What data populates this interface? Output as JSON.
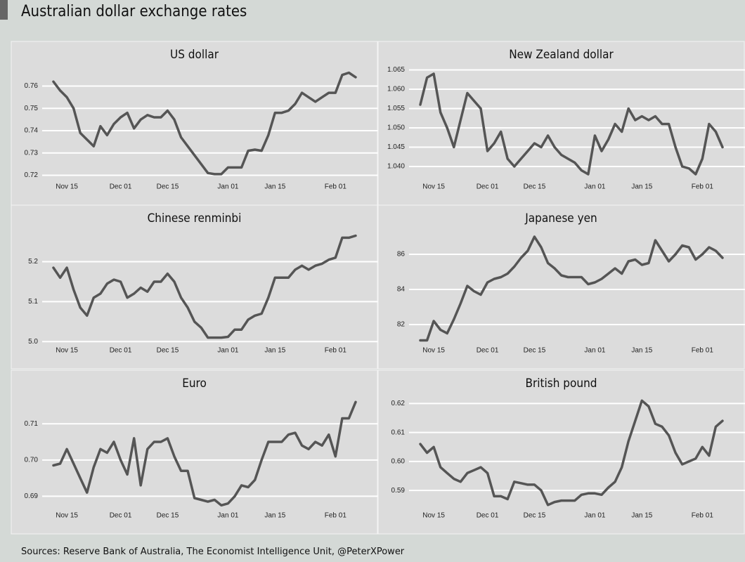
{
  "title": "Australian dollar exchange rates",
  "source": "Sources: Reserve Bank of Australia, The Economist Intelligence Unit, @PeterXPower",
  "chart_data": [
    {
      "type": "line",
      "title": "US dollar",
      "color": "#555555",
      "grid": true,
      "x": [
        "Nov 11",
        "Nov 13",
        "Nov 15",
        "Nov 17",
        "Nov 19",
        "Nov 21",
        "Nov 23",
        "Nov 25",
        "Nov 27",
        "Nov 29",
        "Dec 01",
        "Dec 03",
        "Dec 05",
        "Dec 07",
        "Dec 09",
        "Dec 11",
        "Dec 13",
        "Dec 15",
        "Dec 17",
        "Dec 19",
        "Dec 21",
        "Dec 23",
        "Dec 25",
        "Dec 27",
        "Dec 29",
        "Dec 31",
        "Jan 01",
        "Jan 03",
        "Jan 05",
        "Jan 07",
        "Jan 09",
        "Jan 11",
        "Jan 13",
        "Jan 15",
        "Jan 17",
        "Jan 19",
        "Jan 21",
        "Jan 23",
        "Jan 25",
        "Jan 27",
        "Jan 29",
        "Jan 31",
        "Feb 01",
        "Feb 03",
        "Feb 05",
        "Feb 07"
      ],
      "values": [
        0.762,
        0.758,
        0.755,
        0.75,
        0.739,
        0.736,
        0.733,
        0.742,
        0.738,
        0.743,
        0.746,
        0.748,
        0.741,
        0.745,
        0.747,
        0.746,
        0.746,
        0.749,
        0.745,
        0.737,
        0.733,
        0.729,
        0.725,
        0.721,
        0.7205,
        0.7205,
        0.7235,
        0.7235,
        0.7235,
        0.731,
        0.7315,
        0.731,
        0.738,
        0.748,
        0.748,
        0.749,
        0.752,
        0.757,
        0.755,
        0.753,
        0.755,
        0.757,
        0.757,
        0.765,
        0.766,
        0.764
      ],
      "ylim": [
        0.717,
        0.769
      ],
      "yticks": [
        0.72,
        0.73,
        0.74,
        0.75,
        0.76
      ],
      "xticks": [
        "Nov 15",
        "Dec 01",
        "Dec 15",
        "Jan 01",
        "Jan 15",
        "Feb 01"
      ]
    },
    {
      "type": "line",
      "title": "New Zealand dollar",
      "color": "#555555",
      "grid": true,
      "x": [
        "Nov 11",
        "Nov 13",
        "Nov 15",
        "Nov 17",
        "Nov 19",
        "Nov 21",
        "Nov 23",
        "Nov 25",
        "Nov 27",
        "Nov 29",
        "Dec 01",
        "Dec 03",
        "Dec 05",
        "Dec 07",
        "Dec 09",
        "Dec 11",
        "Dec 13",
        "Dec 15",
        "Dec 17",
        "Dec 19",
        "Dec 21",
        "Dec 23",
        "Dec 25",
        "Dec 27",
        "Dec 29",
        "Dec 31",
        "Jan 01",
        "Jan 03",
        "Jan 05",
        "Jan 07",
        "Jan 09",
        "Jan 11",
        "Jan 13",
        "Jan 15",
        "Jan 17",
        "Jan 19",
        "Jan 21",
        "Jan 23",
        "Jan 25",
        "Jan 27",
        "Jan 29",
        "Jan 31",
        "Feb 01",
        "Feb 03",
        "Feb 05",
        "Feb 07"
      ],
      "values": [
        1.056,
        1.063,
        1.064,
        1.054,
        1.05,
        1.045,
        1.052,
        1.059,
        1.057,
        1.055,
        1.044,
        1.046,
        1.049,
        1.042,
        1.04,
        1.042,
        1.044,
        1.046,
        1.045,
        1.048,
        1.045,
        1.043,
        1.042,
        1.041,
        1.039,
        1.038,
        1.048,
        1.044,
        1.047,
        1.051,
        1.049,
        1.055,
        1.052,
        1.053,
        1.052,
        1.053,
        1.051,
        1.051,
        1.045,
        1.04,
        1.0395,
        1.038,
        1.042,
        1.051,
        1.049,
        1.045
      ],
      "ylim": [
        1.036,
        1.066
      ],
      "yticks": [
        {
          "value": 1.04,
          "label": "1.040"
        },
        1.045,
        {
          "value": 1.05,
          "label": "1.050"
        },
        1.055,
        {
          "value": 1.06,
          "label": "1.060"
        },
        1.065
      ],
      "xticks": [
        "Nov 15",
        "Dec 01",
        "Dec 15",
        "Jan 01",
        "Jan 15",
        "Feb 01"
      ]
    },
    {
      "type": "line",
      "title": "Chinese renminbi",
      "color": "#555555",
      "grid": true,
      "x": [
        "Nov 11",
        "Nov 13",
        "Nov 15",
        "Nov 17",
        "Nov 19",
        "Nov 21",
        "Nov 23",
        "Nov 25",
        "Nov 27",
        "Nov 29",
        "Dec 01",
        "Dec 03",
        "Dec 05",
        "Dec 07",
        "Dec 09",
        "Dec 11",
        "Dec 13",
        "Dec 15",
        "Dec 17",
        "Dec 19",
        "Dec 21",
        "Dec 23",
        "Dec 25",
        "Dec 27",
        "Dec 29",
        "Dec 31",
        "Jan 01",
        "Jan 03",
        "Jan 05",
        "Jan 07",
        "Jan 09",
        "Jan 11",
        "Jan 13",
        "Jan 15",
        "Jan 17",
        "Jan 19",
        "Jan 21",
        "Jan 23",
        "Jan 25",
        "Jan 27",
        "Jan 29",
        "Jan 31",
        "Feb 01",
        "Feb 03",
        "Feb 05",
        "Feb 07"
      ],
      "values": [
        5.185,
        5.16,
        5.185,
        5.13,
        5.085,
        5.065,
        5.11,
        5.12,
        5.145,
        5.155,
        5.15,
        5.11,
        5.12,
        5.135,
        5.125,
        5.15,
        5.15,
        5.17,
        5.15,
        5.11,
        5.085,
        5.05,
        5.035,
        5.01,
        5.01,
        5.01,
        5.012,
        5.03,
        5.03,
        5.055,
        5.065,
        5.07,
        5.11,
        5.16,
        5.16,
        5.16,
        5.18,
        5.19,
        5.18,
        5.19,
        5.195,
        5.205,
        5.21,
        5.26,
        5.26,
        5.265
      ],
      "ylim": [
        4.99,
        5.28
      ],
      "yticks": [
        {
          "value": 5,
          "label": "5.0"
        },
        5.1,
        5.2
      ],
      "xticks": [
        "Nov 15",
        "Dec 01",
        "Dec 15",
        "Jan 01",
        "Jan 15",
        "Feb 01"
      ]
    },
    {
      "type": "line",
      "title": "Japanese yen",
      "color": "#555555",
      "grid": true,
      "x": [
        "Nov 11",
        "Nov 13",
        "Nov 15",
        "Nov 17",
        "Nov 19",
        "Nov 21",
        "Nov 23",
        "Nov 25",
        "Nov 27",
        "Nov 29",
        "Dec 01",
        "Dec 03",
        "Dec 05",
        "Dec 07",
        "Dec 09",
        "Dec 11",
        "Dec 13",
        "Dec 15",
        "Dec 17",
        "Dec 19",
        "Dec 21",
        "Dec 23",
        "Dec 25",
        "Dec 27",
        "Dec 29",
        "Dec 31",
        "Jan 01",
        "Jan 03",
        "Jan 05",
        "Jan 07",
        "Jan 09",
        "Jan 11",
        "Jan 13",
        "Jan 15",
        "Jan 17",
        "Jan 19",
        "Jan 21",
        "Jan 23",
        "Jan 25",
        "Jan 27",
        "Jan 29",
        "Jan 31",
        "Feb 01",
        "Feb 03",
        "Feb 05",
        "Feb 07"
      ],
      "values": [
        81.1,
        81.1,
        82.2,
        81.7,
        81.5,
        82.3,
        83.2,
        84.2,
        83.9,
        83.7,
        84.4,
        84.6,
        84.7,
        84.9,
        85.3,
        85.8,
        86.2,
        87.0,
        86.4,
        85.5,
        85.2,
        84.8,
        84.7,
        84.7,
        84.7,
        84.3,
        84.4,
        84.6,
        84.9,
        85.2,
        84.9,
        85.6,
        85.7,
        85.4,
        85.5,
        86.8,
        86.2,
        85.6,
        86.0,
        86.5,
        86.4,
        85.7,
        86.0,
        86.4,
        86.2,
        85.8
      ],
      "ylim": [
        80.8,
        87.4
      ],
      "yticks": [
        82,
        84,
        86
      ],
      "xticks": [
        "Nov 15",
        "Dec 01",
        "Dec 15",
        "Jan 01",
        "Jan 15",
        "Feb 01"
      ]
    },
    {
      "type": "line",
      "title": "Euro",
      "color": "#555555",
      "grid": true,
      "x": [
        "Nov 11",
        "Nov 13",
        "Nov 15",
        "Nov 17",
        "Nov 19",
        "Nov 21",
        "Nov 23",
        "Nov 25",
        "Nov 27",
        "Nov 29",
        "Dec 01",
        "Dec 03",
        "Dec 05",
        "Dec 07",
        "Dec 09",
        "Dec 11",
        "Dec 13",
        "Dec 15",
        "Dec 17",
        "Dec 19",
        "Dec 21",
        "Dec 23",
        "Dec 25",
        "Dec 27",
        "Dec 29",
        "Dec 31",
        "Jan 01",
        "Jan 03",
        "Jan 05",
        "Jan 07",
        "Jan 09",
        "Jan 11",
        "Jan 13",
        "Jan 15",
        "Jan 17",
        "Jan 19",
        "Jan 21",
        "Jan 23",
        "Jan 25",
        "Jan 27",
        "Jan 29",
        "Jan 31",
        "Feb 01",
        "Feb 03",
        "Feb 05",
        "Feb 07"
      ],
      "values": [
        0.6985,
        0.699,
        0.703,
        0.699,
        0.695,
        0.691,
        0.698,
        0.703,
        0.702,
        0.705,
        0.7,
        0.696,
        0.706,
        0.693,
        0.703,
        0.705,
        0.705,
        0.706,
        0.701,
        0.697,
        0.697,
        0.6895,
        0.689,
        0.6885,
        0.689,
        0.6875,
        0.688,
        0.69,
        0.693,
        0.6925,
        0.6945,
        0.7,
        0.705,
        0.705,
        0.705,
        0.707,
        0.7075,
        0.704,
        0.703,
        0.705,
        0.704,
        0.707,
        0.701,
        0.7115,
        0.7115,
        0.716
      ],
      "ylim": [
        0.686,
        0.718
      ],
      "yticks": [
        0.69,
        {
          "value": 0.7,
          "label": "0.70"
        },
        0.71
      ],
      "xticks": [
        "Nov 15",
        "Dec 01",
        "Dec 15",
        "Jan 01",
        "Jan 15",
        "Feb 01"
      ]
    },
    {
      "type": "line",
      "title": "British pound",
      "color": "#555555",
      "grid": true,
      "x": [
        "Nov 11",
        "Nov 13",
        "Nov 15",
        "Nov 17",
        "Nov 19",
        "Nov 21",
        "Nov 23",
        "Nov 25",
        "Nov 27",
        "Nov 29",
        "Dec 01",
        "Dec 03",
        "Dec 05",
        "Dec 07",
        "Dec 09",
        "Dec 11",
        "Dec 13",
        "Dec 15",
        "Dec 17",
        "Dec 19",
        "Dec 21",
        "Dec 23",
        "Dec 25",
        "Dec 27",
        "Dec 29",
        "Dec 31",
        "Jan 01",
        "Jan 03",
        "Jan 05",
        "Jan 07",
        "Jan 09",
        "Jan 11",
        "Jan 13",
        "Jan 15",
        "Jan 17",
        "Jan 19",
        "Jan 21",
        "Jan 23",
        "Jan 25",
        "Jan 27",
        "Jan 29",
        "Jan 31",
        "Feb 01",
        "Feb 03",
        "Feb 05",
        "Feb 07"
      ],
      "values": [
        0.606,
        0.603,
        0.605,
        0.598,
        0.596,
        0.594,
        0.593,
        0.596,
        0.597,
        0.598,
        0.596,
        0.588,
        0.588,
        0.587,
        0.593,
        0.5925,
        0.592,
        0.592,
        0.59,
        0.585,
        0.586,
        0.5865,
        0.5865,
        0.5865,
        0.5885,
        0.589,
        0.589,
        0.5885,
        0.591,
        0.593,
        0.598,
        0.607,
        0.614,
        0.621,
        0.619,
        0.613,
        0.612,
        0.609,
        0.603,
        0.599,
        0.6,
        0.601,
        0.605,
        0.602,
        0.612,
        0.614
      ],
      "ylim": [
        0.583,
        0.623
      ],
      "yticks": [
        0.59,
        {
          "value": 0.6,
          "label": "0.60"
        },
        0.61,
        0.62
      ],
      "xticks": [
        "Nov 15",
        "Dec 01",
        "Dec 15",
        "Jan 01",
        "Jan 15",
        "Feb 01"
      ]
    }
  ]
}
